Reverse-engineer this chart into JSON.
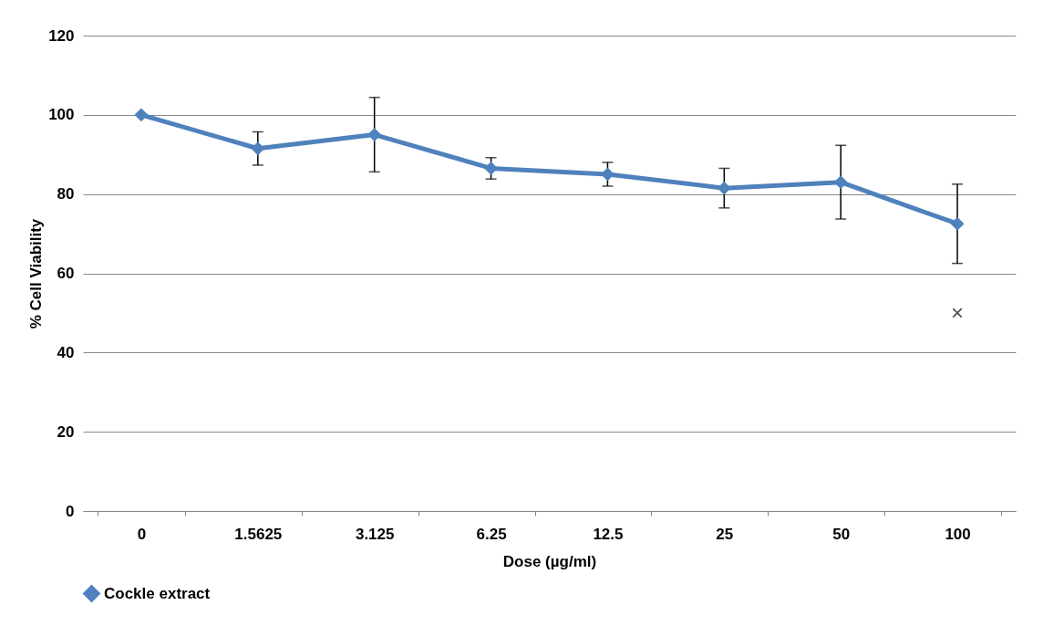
{
  "chart_data": {
    "type": "line",
    "xlabel": "Dose (µg/ml)",
    "ylabel": "% Cell Viability",
    "categories": [
      "0",
      "1.5625",
      "3.125",
      "6.25",
      "12.5",
      "25",
      "50",
      "100"
    ],
    "series": [
      {
        "name": "Cockle extract",
        "color": "#4f81bd",
        "marker": "diamond",
        "values": [
          100,
          91.5,
          95,
          86.5,
          85,
          81.5,
          83,
          72.5
        ],
        "errors": [
          null,
          4.2,
          9.4,
          2.7,
          3,
          5,
          9.3,
          10
        ]
      },
      {
        "type": "scatter",
        "color": "#000000",
        "marker": "cross",
        "values": [
          null,
          null,
          null,
          null,
          null,
          null,
          null,
          50
        ]
      }
    ],
    "ylim": [
      0,
      120
    ],
    "yticks": [
      0,
      20,
      40,
      60,
      80,
      100,
      120
    ],
    "grid": "y",
    "legend": "bottom"
  }
}
